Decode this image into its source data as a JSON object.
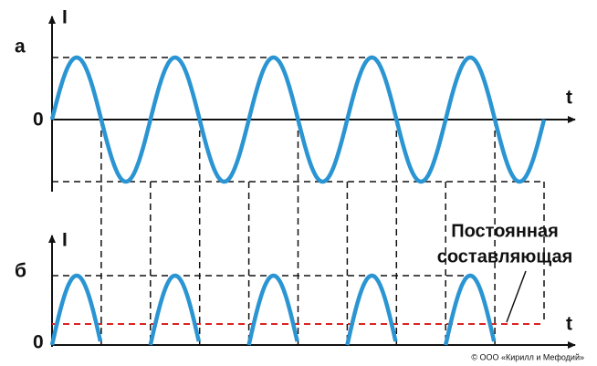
{
  "top": {
    "label": "а",
    "y_axis": "I",
    "origin": "0",
    "x_axis": "t"
  },
  "bottom": {
    "label": "б",
    "y_axis": "I",
    "origin": "0",
    "x_axis": "t"
  },
  "annotation": {
    "line1": "Постоянная",
    "line2": "составляющая"
  },
  "copyright": "© ООО «Кирилл и Мефодий»"
}
